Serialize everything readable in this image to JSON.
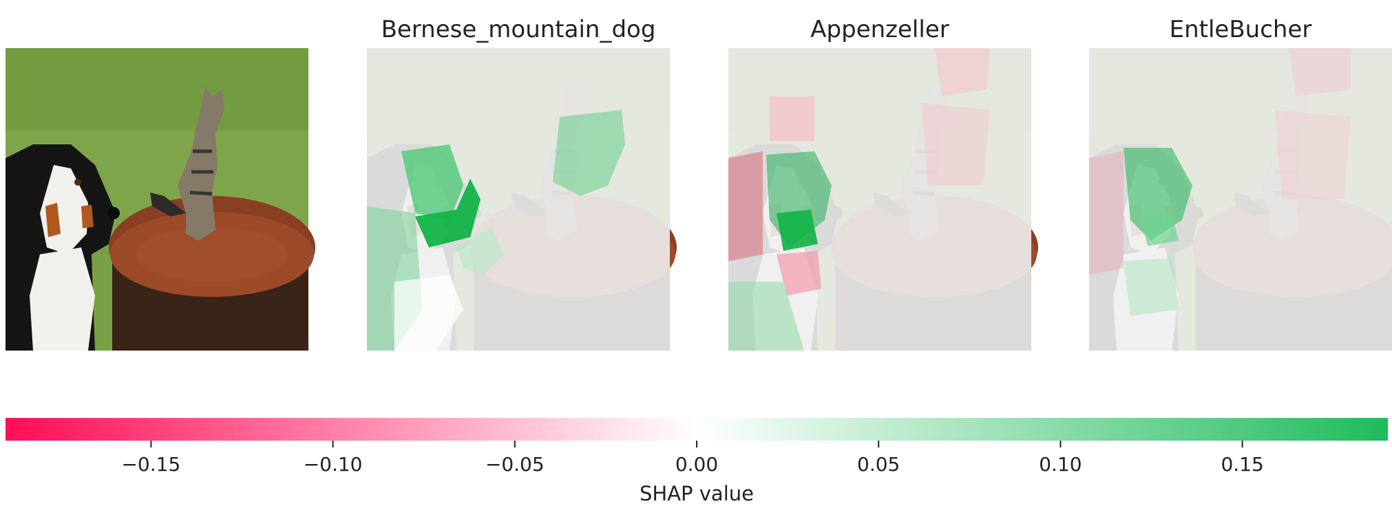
{
  "chart_data": {
    "type": "heatmap",
    "panels": [
      {
        "title": "",
        "kind": "original-image"
      },
      {
        "title": "Bernese_mountain_dog",
        "kind": "shap-overlay"
      },
      {
        "title": "Appenzeller",
        "kind": "shap-overlay"
      },
      {
        "title": "EntleBucher",
        "kind": "shap-overlay"
      }
    ],
    "colorbar": {
      "xlabel": "SHAP value",
      "range": [
        -0.19,
        0.19
      ],
      "ticks": [
        -0.15,
        -0.1,
        -0.05,
        0.0,
        0.05,
        0.1,
        0.15
      ],
      "tick_labels": [
        "−0.15",
        "−0.10",
        "−0.05",
        "0.00",
        "0.05",
        "0.10",
        "0.15"
      ],
      "negative_color": "#ff0d57",
      "positive_color": "#1fbb5c",
      "center_color": "#ffffff"
    },
    "colors": {
      "grass": "#7ba046",
      "stump": "#8a3f22",
      "gray_overlay": "#efefef"
    }
  }
}
